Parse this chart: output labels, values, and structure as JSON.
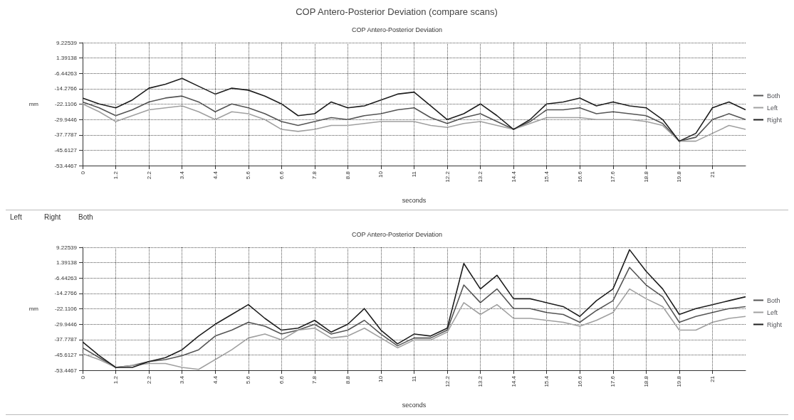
{
  "chart_data": [
    {
      "type": "line",
      "title": "COP Antero-Posterior Deviation",
      "xlabel": "seconds",
      "ylabel": "mm",
      "annotations": [
        "COP Antero-Posterior Deviation (compare scans)"
      ],
      "categories": [
        "0",
        null,
        "1.2",
        null,
        "2.2",
        null,
        "3.4",
        null,
        "4.4",
        null,
        "5.6",
        null,
        "6.6",
        null,
        "7.8",
        null,
        "8.8",
        null,
        "10",
        null,
        "11",
        null,
        "12.2",
        null,
        "13.2",
        null,
        "14.4",
        null,
        "15.4",
        null,
        "16.6",
        null,
        "17.6",
        null,
        "18.8",
        null,
        "19.8",
        null,
        "21",
        null,
        null
      ],
      "series": [
        {
          "name": "Both",
          "color": "#555555",
          "values": [
            -21,
            -24,
            -28,
            -25,
            -21,
            -19,
            -18,
            -21,
            -26,
            -22,
            -24,
            -27,
            -31,
            -33,
            -31,
            -29,
            -30,
            -28,
            -27,
            -25,
            -24,
            -29,
            -32,
            -29,
            -27,
            -31,
            -35,
            -31,
            -25,
            -25,
            -24,
            -27,
            -26,
            -27,
            -28,
            -32,
            -41,
            -39,
            -30,
            -27,
            -30
          ]
        },
        {
          "name": "Left",
          "color": "#a0a0a0",
          "values": [
            -22,
            -26,
            -31,
            -28,
            -25,
            -24,
            -23,
            -26,
            -30,
            -26,
            -27,
            -30,
            -35,
            -36,
            -35,
            -33,
            -33,
            -32,
            -31,
            -31,
            -31,
            -33,
            -34,
            -32,
            -31,
            -33,
            -35,
            -32,
            -29,
            -29,
            -29,
            -30,
            -30,
            -30,
            -31,
            -33,
            -41,
            -41,
            -37,
            -33,
            -35
          ]
        },
        {
          "name": "Right",
          "color": "#1e1e1e",
          "values": [
            -19,
            -22,
            -24,
            -20,
            -14,
            -12,
            -9,
            -13,
            -17,
            -14,
            -15,
            -18,
            -22,
            -28,
            -27,
            -21,
            -24,
            -23,
            -20,
            -17,
            -16,
            -23,
            -30,
            -27,
            -22,
            -28,
            -35,
            -30,
            -22,
            -21,
            -19,
            -23,
            -21,
            -23,
            -24,
            -30,
            -41,
            -37,
            -24,
            -21,
            -25
          ]
        }
      ],
      "ylim": [
        -53.4467,
        9.22539
      ],
      "yticks": [
        -53.4467,
        -45.6127,
        -37.7787,
        -29.9446,
        -22.1106,
        -14.2766,
        -6.44263,
        1.39138,
        9.22539
      ],
      "grid": true,
      "legend": "right",
      "marker": "none"
    },
    {
      "type": "line",
      "title": "COP Antero-Posterior Deviation",
      "xlabel": "seconds",
      "ylabel": "mm",
      "annotations": [
        "Left",
        "Right",
        "Both"
      ],
      "categories": [
        "0",
        null,
        "1.2",
        null,
        "2.2",
        null,
        "3.4",
        null,
        "4.4",
        null,
        "5.6",
        null,
        "6.6",
        null,
        "7.8",
        null,
        "8.8",
        null,
        "10",
        null,
        "11",
        null,
        "12.2",
        null,
        "13.2",
        null,
        "14.4",
        null,
        "15.4",
        null,
        "16.6",
        null,
        "17.6",
        null,
        "18.8",
        null,
        "19.8",
        null,
        "21",
        null,
        null
      ],
      "series": [
        {
          "name": "Both",
          "color": "#555555",
          "values": [
            -42,
            -47,
            -52,
            -51,
            -49,
            -48,
            -46,
            -43,
            -36,
            -33,
            -29,
            -31,
            -35,
            -33,
            -30,
            -35,
            -33,
            -28,
            -35,
            -41,
            -37,
            -37,
            -33,
            -10,
            -19,
            -12,
            -22,
            -22,
            -24,
            -25,
            -29,
            -23,
            -18,
            -1,
            -10,
            -16,
            -29,
            -26,
            -24,
            -22,
            -21
          ]
        },
        {
          "name": "Left",
          "color": "#a0a0a0",
          "values": [
            -45,
            -48,
            -52,
            -51,
            -50,
            -50,
            -52,
            -53,
            -48,
            -43,
            -37,
            -35,
            -38,
            -33,
            -32,
            -37,
            -36,
            -32,
            -37,
            -42,
            -38,
            -38,
            -34,
            -19,
            -25,
            -20,
            -27,
            -27,
            -28,
            -29,
            -31,
            -28,
            -24,
            -12,
            -17,
            -21,
            -33,
            -33,
            -29,
            -27,
            -26
          ]
        },
        {
          "name": "Right",
          "color": "#1e1e1e",
          "values": [
            -39,
            -46,
            -52,
            -52,
            -49,
            -47,
            -43,
            -36,
            -30,
            -25,
            -20,
            -27,
            -33,
            -32,
            -28,
            -34,
            -30,
            -22,
            -33,
            -40,
            -35,
            -36,
            -32,
            1,
            -12,
            -5,
            -17,
            -17,
            -19,
            -21,
            -26,
            -18,
            -12,
            8,
            -3,
            -12,
            -25,
            -22,
            -20,
            -18,
            -16
          ]
        }
      ],
      "ylim": [
        -53.4467,
        9.22539
      ],
      "yticks": [
        -53.4467,
        -45.6127,
        -37.7787,
        -29.9446,
        -22.1106,
        -14.2766,
        -6.44263,
        1.39138,
        9.22539
      ],
      "grid": true,
      "legend": "right",
      "marker": "none"
    }
  ]
}
